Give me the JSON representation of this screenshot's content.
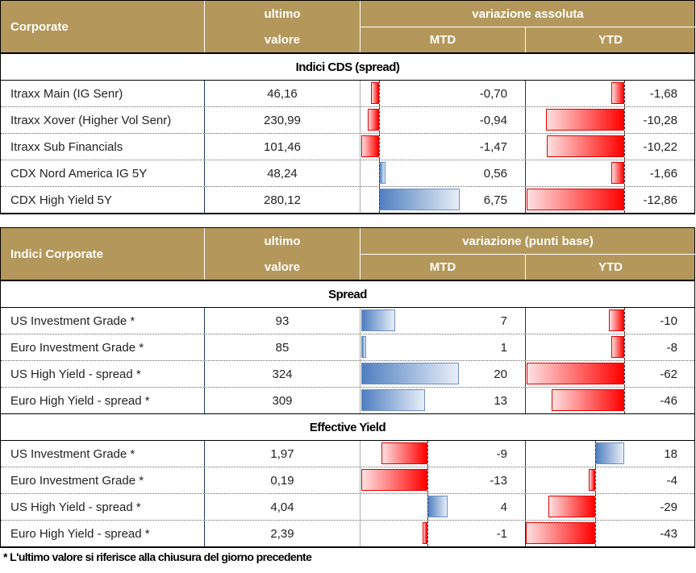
{
  "table1": {
    "header": {
      "corner": "Corporate",
      "last_top": "ultimo",
      "last_bottom": "valore",
      "group": "variazione assoluta",
      "mtd": "MTD",
      "ytd": "YTD"
    },
    "sections": [
      {
        "title": "Indici CDS (spread)",
        "rows": [
          {
            "name": "Itraxx Main (IG Senr)",
            "value": "46,16",
            "mtd": "-0,70",
            "ytd": "-1,68",
            "mtd_num": -0.7,
            "ytd_num": -1.68
          },
          {
            "name": "Itraxx Xover (Higher Vol Senr)",
            "value": "230,99",
            "mtd": "-0,94",
            "ytd": "-10,28",
            "mtd_num": -0.94,
            "ytd_num": -10.28
          },
          {
            "name": "Itraxx Sub Financials",
            "value": "101,46",
            "mtd": "-1,47",
            "ytd": "-10,22",
            "mtd_num": -1.47,
            "ytd_num": -10.22
          },
          {
            "name": "CDX Nord America IG 5Y",
            "value": "48,24",
            "mtd": "0,56",
            "ytd": "-1,66",
            "mtd_num": 0.56,
            "ytd_num": -1.66
          },
          {
            "name": "CDX High Yield 5Y",
            "value": "280,12",
            "mtd": "6,75",
            "ytd": "-12,86",
            "mtd_num": 6.75,
            "ytd_num": -12.86
          }
        ]
      }
    ]
  },
  "table2": {
    "header": {
      "corner": "Indici Corporate",
      "last_top": "ultimo",
      "last_bottom": "valore",
      "group": "variazione (punti base)",
      "mtd": "MTD",
      "ytd": "YTD"
    },
    "sections": [
      {
        "title": "Spread",
        "rows": [
          {
            "name": "US Investment Grade *",
            "value": "93",
            "mtd": "7",
            "ytd": "-10",
            "mtd_num": 7,
            "ytd_num": -10
          },
          {
            "name": "Euro Investment Grade *",
            "value": "85",
            "mtd": "1",
            "ytd": "-8",
            "mtd_num": 1,
            "ytd_num": -8
          },
          {
            "name": "US High Yield  - spread *",
            "value": "324",
            "mtd": "20",
            "ytd": "-62",
            "mtd_num": 20,
            "ytd_num": -62
          },
          {
            "name": "Euro High Yield  - spread *",
            "value": "309",
            "mtd": "13",
            "ytd": "-46",
            "mtd_num": 13,
            "ytd_num": -46
          }
        ]
      },
      {
        "title": "Effective Yield",
        "rows": [
          {
            "name": "US Investment Grade *",
            "value": "1,97",
            "mtd": "-9",
            "ytd": "18",
            "mtd_num": -9,
            "ytd_num": 18
          },
          {
            "name": "Euro Investment Grade *",
            "value": "0,19",
            "mtd": "-13",
            "ytd": "-4",
            "mtd_num": -13,
            "ytd_num": -4
          },
          {
            "name": "US High Yield  - spread *",
            "value": "4,04",
            "mtd": "4",
            "ytd": "-29",
            "mtd_num": 4,
            "ytd_num": -29
          },
          {
            "name": "Euro High Yield  - spread *",
            "value": "2,39",
            "mtd": "-1",
            "ytd": "-43",
            "mtd_num": -1,
            "ytd_num": -43
          }
        ]
      }
    ]
  },
  "footnote": "* L'ultimo valore si riferisce alla chiusura del giorno precedente"
}
